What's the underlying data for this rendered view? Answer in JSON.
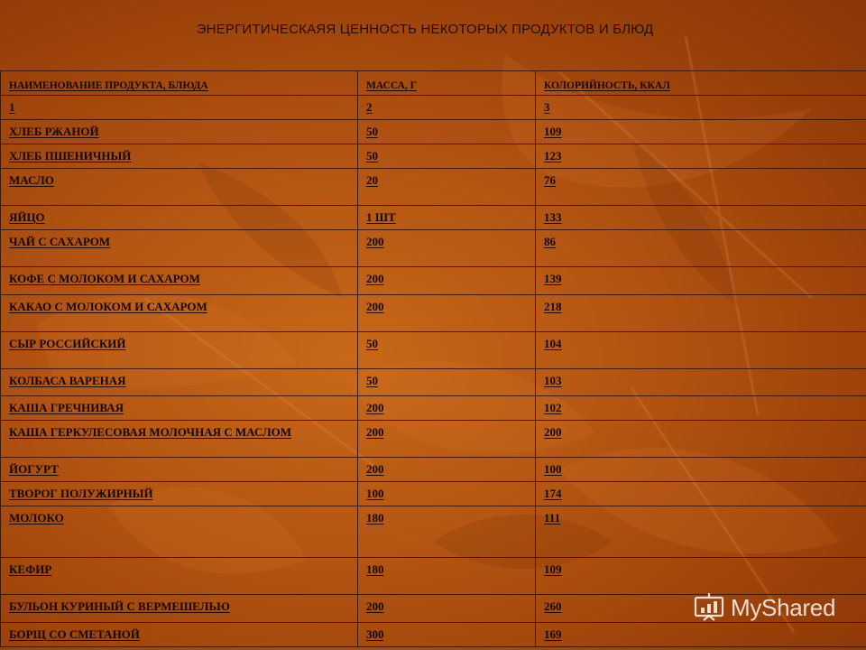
{
  "title": "ЭНЕРГИТИЧЕСКАЯЯ ЦЕННОСТЬ НЕКОТОРЫХ ПРОДУКТОВ И БЛЮД",
  "table": {
    "header": [
      "НАИМЕНОВАНИЕ ПРОДУКТА, БЛЮДА",
      "МАССА, Г",
      "КОЛОРИЙНОСТЬ, ККАЛ"
    ],
    "rows": [
      [
        "1",
        "2",
        "3"
      ],
      [
        "ХЛЕБ РЖАНОЙ",
        "50",
        "109"
      ],
      [
        "ХЛЕБ ПШЕНИЧНЫЙ",
        "50",
        "123"
      ],
      [
        "МАСЛО",
        "20",
        "76"
      ],
      [
        "ЯЙЦО",
        "1 ШТ",
        "133"
      ],
      [
        "ЧАЙ С САХАРОМ",
        "200",
        "86"
      ],
      [
        "КОФЕ С МОЛОКОМ И САХАРОМ",
        "200",
        "139"
      ],
      [
        "КАКАО С МОЛОКОМ И САХАРОМ",
        "200",
        "218"
      ],
      [
        "СЫР РОССИЙСКИЙ",
        "50",
        "104"
      ],
      [
        "КОЛБАСА ВАРЕНАЯ",
        "50",
        "103"
      ],
      [
        "КАША ГРЕЧНИВАЯ",
        "200",
        "102"
      ],
      [
        "КАША ГЕРКУЛЕСОВАЯ МОЛОЧНАЯ С МАСЛОМ",
        "200",
        "200"
      ],
      [
        "ЙОГУРТ",
        "200",
        "100"
      ],
      [
        "ТВОРОГ ПОЛУЖИРНЫЙ",
        "100",
        "174"
      ],
      [
        "МОЛОКО",
        "180",
        "111"
      ],
      [
        "КЕФИР",
        "180",
        "109"
      ],
      [
        "БУЛЬОН КУРИНЫЙ С ВЕРМЕШЕЛЬЮ",
        "200",
        "260"
      ],
      [
        "БОРЩ СО СМЕТАНОЙ",
        "300",
        "169"
      ]
    ]
  },
  "watermark": {
    "text": "MyShared",
    "icon": "presentation-board-icon"
  }
}
